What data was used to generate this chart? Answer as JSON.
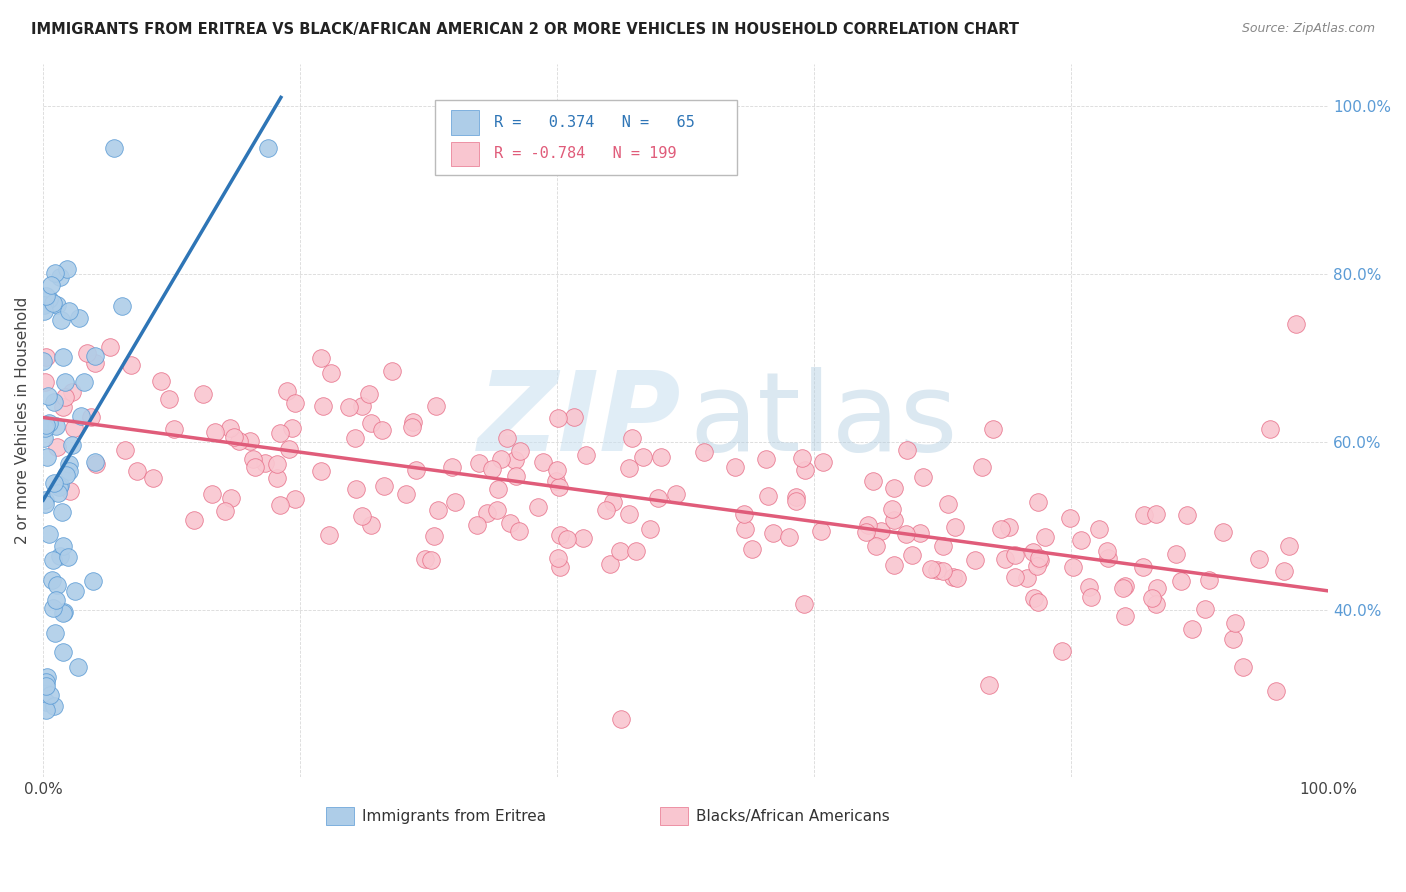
{
  "title": "IMMIGRANTS FROM ERITREA VS BLACK/AFRICAN AMERICAN 2 OR MORE VEHICLES IN HOUSEHOLD CORRELATION CHART",
  "source": "Source: ZipAtlas.com",
  "ylabel": "2 or more Vehicles in Household",
  "blue_color": "#aecde8",
  "blue_edge_color": "#5b9bd5",
  "blue_line_color": "#2e75b6",
  "pink_color": "#f9c6d0",
  "pink_edge_color": "#e8718a",
  "pink_line_color": "#e05c7a",
  "right_tick_color": "#5b9bd5",
  "watermark_zip_color": "#c8dff0",
  "watermark_atlas_color": "#b0cce0",
  "grid_color": "#d0d0d0",
  "title_color": "#222222",
  "source_color": "#888888",
  "legend_text_color_blue": "#2e75b6",
  "legend_text_color_pink": "#e05c7a",
  "seed": 12345,
  "blue_N": 65,
  "pink_N": 199,
  "blue_R": 0.374,
  "pink_R": -0.784,
  "xlim": [
    0.0,
    1.0
  ],
  "ylim": [
    0.2,
    1.05
  ],
  "yticks": [
    0.2,
    0.4,
    0.6,
    0.8,
    1.0
  ],
  "right_ytick_labels": [
    "",
    "40.0%",
    "60.0%",
    "80.0%",
    "100.0%"
  ],
  "xtick_labels_show": [
    "0.0%",
    "100.0%"
  ],
  "bottom_legend_labels": [
    "Immigrants from Eritrea",
    "Blacks/African Americans"
  ]
}
